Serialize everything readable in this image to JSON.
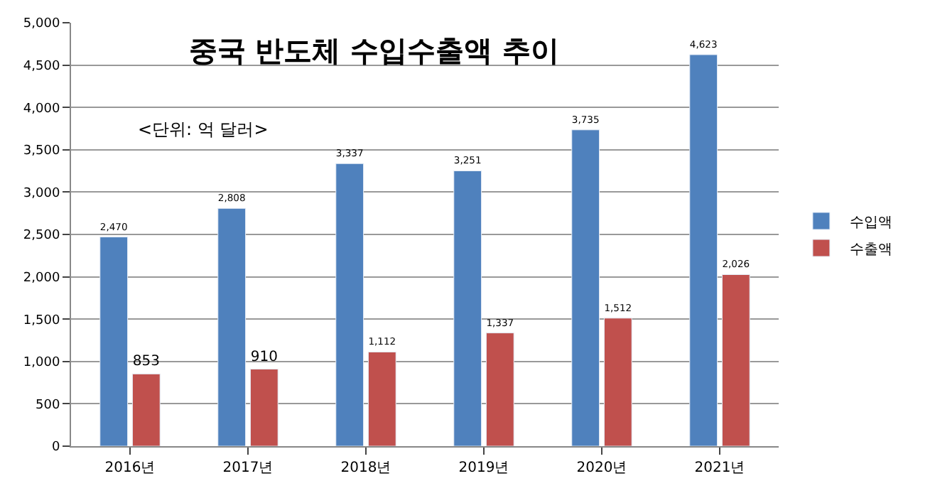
{
  "chart_data": {
    "type": "bar",
    "title": "중국 반도체 수입수출액 추이",
    "annotations": [
      "<단위: 억 달러>"
    ],
    "categories": [
      "2016년",
      "2017년",
      "2018년",
      "2019년",
      "2020년",
      "2021년"
    ],
    "series": [
      {
        "name": "수입액",
        "color": "#4f81bd",
        "values": [
          2470,
          2808,
          3337,
          3251,
          3735,
          4623
        ],
        "value_labels": [
          "2,470",
          "2,808",
          "3,337",
          "3,251",
          "3,735",
          "4,623"
        ]
      },
      {
        "name": "수출액",
        "color": "#c0504d",
        "values": [
          853,
          910,
          1112,
          1337,
          1512,
          2026
        ],
        "value_labels": [
          "853",
          "910",
          "1,112",
          "1,337",
          "1,512",
          "2,026"
        ]
      }
    ],
    "ylim": [
      0,
      5000
    ],
    "yticks": [
      {
        "value": 0,
        "label": "0"
      },
      {
        "value": 500,
        "label": "500"
      },
      {
        "value": 1000,
        "label": "1,000"
      },
      {
        "value": 1500,
        "label": "1,500"
      },
      {
        "value": 2000,
        "label": "2,000"
      },
      {
        "value": 2500,
        "label": "2,500"
      },
      {
        "value": 3000,
        "label": "3,000"
      },
      {
        "value": 3500,
        "label": "3,500"
      },
      {
        "value": 4000,
        "label": "4,000"
      },
      {
        "value": 4500,
        "label": "4,500"
      },
      {
        "value": 5000,
        "label": "5,000"
      }
    ],
    "grid": "y",
    "legend": "right"
  }
}
